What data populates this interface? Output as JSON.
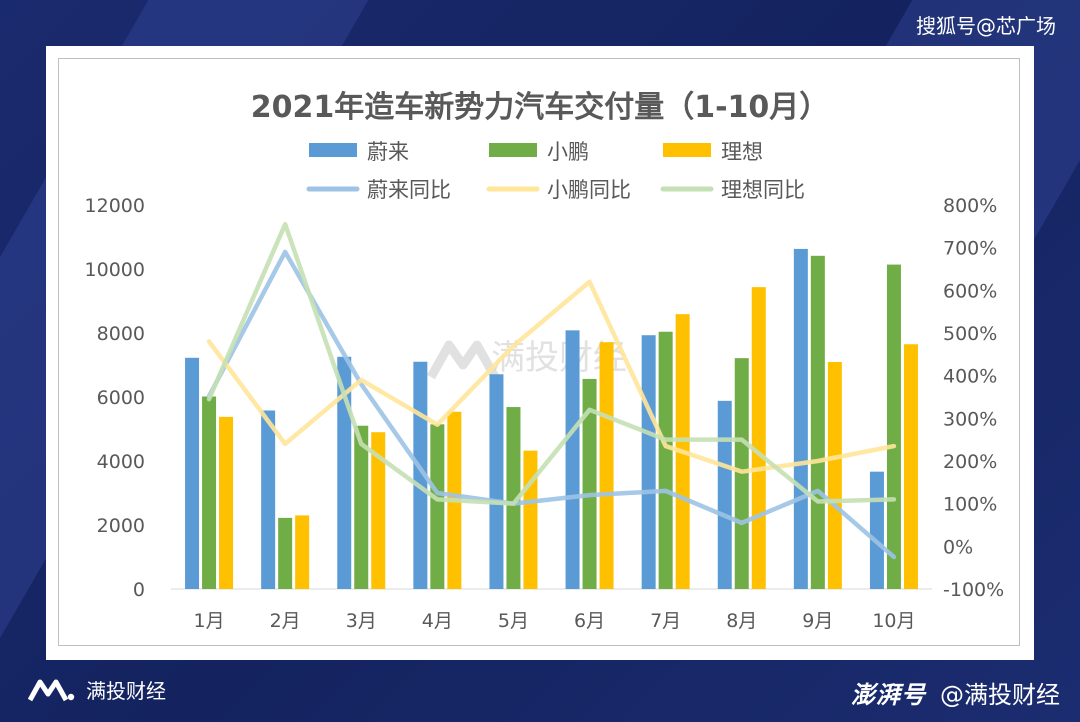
{
  "watermark_top": "搜狐号@芯广场",
  "center_watermark": "满投财经",
  "footer": {
    "brand": "满投财经",
    "platform": "澎湃号",
    "handle": "@满投财经"
  },
  "colors": {
    "nio": "#5b9bd5",
    "xpeng": "#70ad47",
    "li": "#ffc000",
    "nio_yoy": "#9dc3e6",
    "xpeng_yoy": "#ffe699",
    "li_yoy": "#c5e0b4"
  },
  "chart_data": {
    "type": "bar",
    "title": "2021年造车新势力汽车交付量（1-10月）",
    "categories": [
      "1月",
      "2月",
      "3月",
      "4月",
      "5月",
      "6月",
      "7月",
      "8月",
      "9月",
      "10月"
    ],
    "series": [
      {
        "name": "蔚来",
        "type": "bar",
        "axis": "left",
        "color": "#5b9bd5",
        "values": [
          7225,
          5578,
          7257,
          7102,
          6711,
          8083,
          7931,
          5880,
          10628,
          3667
        ]
      },
      {
        "name": "小鹏",
        "type": "bar",
        "axis": "left",
        "color": "#70ad47",
        "values": [
          6015,
          2223,
          5102,
          5147,
          5686,
          6565,
          8040,
          7214,
          10412,
          10138
        ]
      },
      {
        "name": "理想",
        "type": "bar",
        "axis": "left",
        "color": "#ffc000",
        "values": [
          5379,
          2300,
          4900,
          5539,
          4323,
          7713,
          8589,
          9433,
          7094,
          7649
        ]
      },
      {
        "name": "蔚来同比",
        "type": "line",
        "axis": "right",
        "color": "#9dc3e6",
        "values": [
          352,
          690,
          380,
          125,
          100,
          120,
          130,
          55,
          130,
          -25
        ]
      },
      {
        "name": "小鹏同比",
        "type": "line",
        "axis": "right",
        "color": "#ffe699",
        "values": [
          480,
          240,
          390,
          285,
          470,
          620,
          235,
          175,
          200,
          235
        ]
      },
      {
        "name": "理想同比",
        "type": "line",
        "axis": "right",
        "color": "#c5e0b4",
        "values": [
          345,
          755,
          240,
          110,
          100,
          320,
          250,
          250,
          105,
          110
        ]
      }
    ],
    "y_left": {
      "min": 0,
      "max": 12000,
      "ticks": [
        "0",
        "2000",
        "4000",
        "6000",
        "8000",
        "10000",
        "12000"
      ]
    },
    "y_right": {
      "min": -100,
      "max": 800,
      "ticks": [
        "-100%",
        "0%",
        "100%",
        "200%",
        "300%",
        "400%",
        "500%",
        "600%",
        "700%",
        "800%"
      ]
    },
    "legend_position": "top",
    "grid": false
  }
}
